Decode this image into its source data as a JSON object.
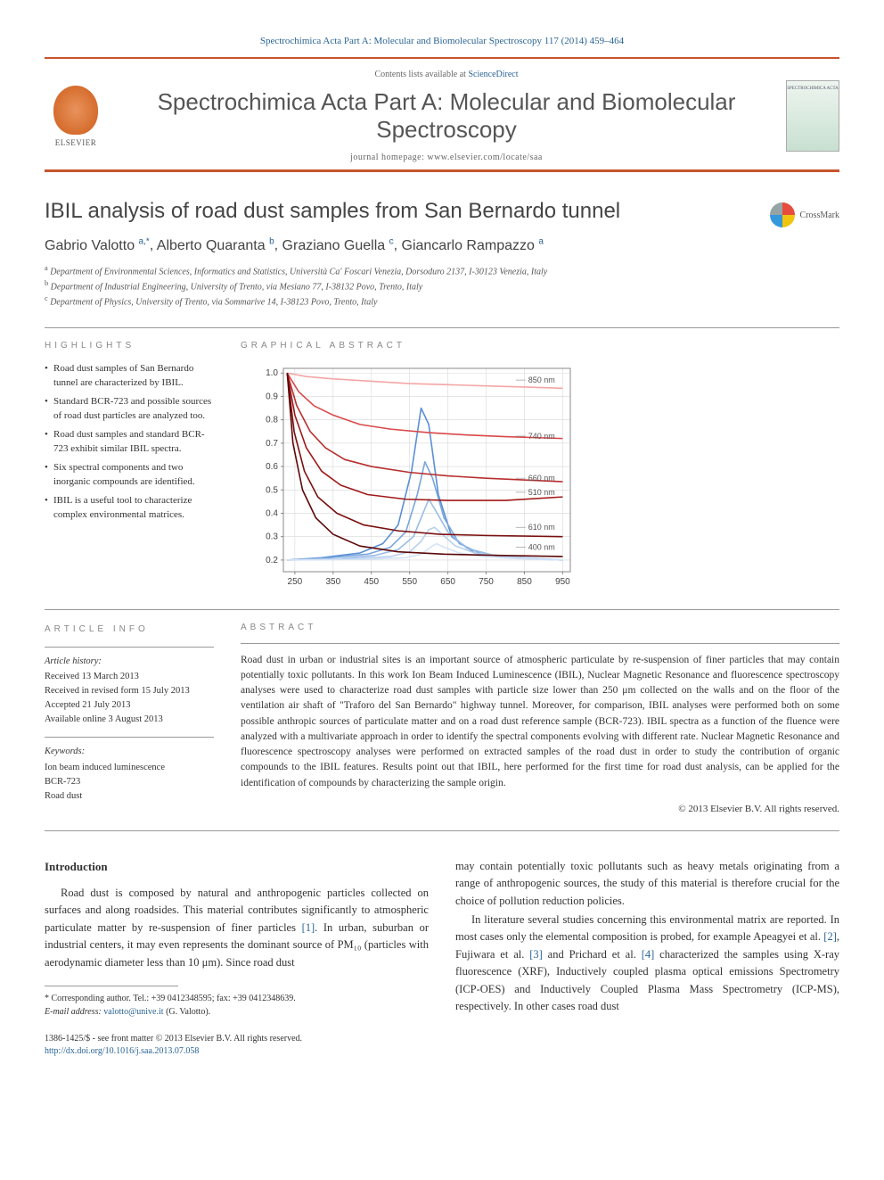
{
  "header": {
    "citation": "Spectrochimica Acta Part A: Molecular and Biomolecular Spectroscopy 117 (2014) 459–464",
    "contents_prefix": "Contents lists available at ",
    "contents_link": "ScienceDirect",
    "journal_title": "Spectrochimica Acta Part A: Molecular and Biomolecular Spectroscopy",
    "homepage_prefix": "journal homepage: ",
    "homepage": "www.elsevier.com/locate/saa",
    "elsevier_label": "ELSEVIER",
    "cover_label": "SPECTROCHIMICA ACTA"
  },
  "article": {
    "title": "IBIL analysis of road dust samples from San Bernardo tunnel",
    "crossmark_label": "CrossMark",
    "authors_html": "Gabrio Valotto",
    "authors": [
      {
        "name": "Gabrio Valotto",
        "sup": "a,*"
      },
      {
        "name": "Alberto Quaranta",
        "sup": "b"
      },
      {
        "name": "Graziano Guella",
        "sup": "c"
      },
      {
        "name": "Giancarlo Rampazzo",
        "sup": "a"
      }
    ],
    "affiliations": [
      {
        "sup": "a",
        "text": "Department of Environmental Sciences, Informatics and Statistics, Università Ca' Foscari Venezia, Dorsoduro 2137, I-30123 Venezia, Italy"
      },
      {
        "sup": "b",
        "text": "Department of Industrial Engineering, University of Trento, via Mesiano 77, I-38132 Povo, Trento, Italy"
      },
      {
        "sup": "c",
        "text": "Department of Physics, University of Trento, via Sommarive 14, I-38123 Povo, Trento, Italy"
      }
    ]
  },
  "highlights": {
    "label": "HIGHLIGHTS",
    "items": [
      "Road dust samples of San Bernardo tunnel are characterized by IBIL.",
      "Standard BCR-723 and possible sources of road dust particles are analyzed too.",
      "Road dust samples and standard BCR-723 exhibit similar IBIL spectra.",
      "Six spectral components and two inorganic compounds are identified.",
      "IBIL is a useful tool to characterize complex environmental matrices."
    ]
  },
  "graphical_abstract": {
    "label": "GRAPHICAL ABSTRACT",
    "chart": {
      "type": "line",
      "xlim": [
        220,
        970
      ],
      "ylim": [
        0.15,
        1.02
      ],
      "xticks": [
        250,
        350,
        450,
        550,
        650,
        750,
        850,
        950
      ],
      "yticks": [
        0.2,
        0.3,
        0.4,
        0.5,
        0.6,
        0.7,
        0.8,
        0.9,
        1.0
      ],
      "tick_fontsize": 10,
      "grid_color": "#d8d8d8",
      "border_color": "#888888",
      "background_color": "#ffffff",
      "line_width": 1.6,
      "decay_series": [
        {
          "color": "#f4a6a6",
          "label": "850 nm",
          "label_x": 860,
          "label_y": 0.97,
          "points": [
            [
              230,
              1.0
            ],
            [
              280,
              0.985
            ],
            [
              350,
              0.975
            ],
            [
              450,
              0.965
            ],
            [
              550,
              0.955
            ],
            [
              650,
              0.95
            ],
            [
              750,
              0.945
            ],
            [
              850,
              0.94
            ],
            [
              950,
              0.935
            ]
          ]
        },
        {
          "color": "#d94848",
          "label": "740 nm",
          "label_x": 860,
          "label_y": 0.73,
          "points": [
            [
              230,
              1.0
            ],
            [
              260,
              0.92
            ],
            [
              300,
              0.86
            ],
            [
              350,
              0.82
            ],
            [
              420,
              0.78
            ],
            [
              500,
              0.76
            ],
            [
              600,
              0.745
            ],
            [
              700,
              0.735
            ],
            [
              800,
              0.728
            ],
            [
              950,
              0.72
            ]
          ]
        },
        {
          "color": "#b82e2e",
          "label": "660 nm",
          "label_x": 860,
          "label_y": 0.55,
          "points": [
            [
              230,
              1.0
            ],
            [
              255,
              0.86
            ],
            [
              290,
              0.75
            ],
            [
              330,
              0.68
            ],
            [
              380,
              0.63
            ],
            [
              450,
              0.6
            ],
            [
              550,
              0.575
            ],
            [
              650,
              0.56
            ],
            [
              750,
              0.55
            ],
            [
              950,
              0.535
            ]
          ]
        },
        {
          "color": "#a01818",
          "label": "510 nm",
          "label_x": 860,
          "label_y": 0.49,
          "points": [
            [
              230,
              1.0
            ],
            [
              250,
              0.82
            ],
            [
              280,
              0.68
            ],
            [
              320,
              0.58
            ],
            [
              370,
              0.52
            ],
            [
              440,
              0.48
            ],
            [
              540,
              0.46
            ],
            [
              650,
              0.455
            ],
            [
              800,
              0.455
            ],
            [
              950,
              0.47
            ]
          ]
        },
        {
          "color": "#7a0f0f",
          "label": "610 nm",
          "label_x": 860,
          "label_y": 0.34,
          "points": [
            [
              230,
              1.0
            ],
            [
              248,
              0.75
            ],
            [
              275,
              0.58
            ],
            [
              310,
              0.47
            ],
            [
              360,
              0.4
            ],
            [
              430,
              0.35
            ],
            [
              520,
              0.325
            ],
            [
              630,
              0.31
            ],
            [
              750,
              0.305
            ],
            [
              950,
              0.3
            ]
          ]
        },
        {
          "color": "#5c0808",
          "label": "400 nm",
          "label_x": 860,
          "label_y": 0.255,
          "points": [
            [
              230,
              1.0
            ],
            [
              245,
              0.7
            ],
            [
              270,
              0.5
            ],
            [
              305,
              0.38
            ],
            [
              350,
              0.31
            ],
            [
              420,
              0.26
            ],
            [
              520,
              0.235
            ],
            [
              640,
              0.225
            ],
            [
              780,
              0.22
            ],
            [
              950,
              0.215
            ]
          ]
        }
      ],
      "blue_peak_series": [
        {
          "color": "#5b8fd6",
          "points": [
            [
              230,
              0.2
            ],
            [
              320,
              0.21
            ],
            [
              420,
              0.23
            ],
            [
              480,
              0.27
            ],
            [
              520,
              0.35
            ],
            [
              555,
              0.58
            ],
            [
              580,
              0.85
            ],
            [
              600,
              0.78
            ],
            [
              625,
              0.48
            ],
            [
              660,
              0.3
            ],
            [
              720,
              0.23
            ],
            [
              820,
              0.21
            ],
            [
              950,
              0.2
            ]
          ]
        },
        {
          "color": "#7aa5de",
          "points": [
            [
              230,
              0.2
            ],
            [
              340,
              0.21
            ],
            [
              440,
              0.225
            ],
            [
              500,
              0.255
            ],
            [
              540,
              0.32
            ],
            [
              570,
              0.48
            ],
            [
              590,
              0.62
            ],
            [
              610,
              0.55
            ],
            [
              640,
              0.38
            ],
            [
              680,
              0.27
            ],
            [
              740,
              0.225
            ],
            [
              850,
              0.21
            ],
            [
              950,
              0.2
            ]
          ]
        },
        {
          "color": "#9abce6",
          "points": [
            [
              230,
              0.2
            ],
            [
              360,
              0.205
            ],
            [
              460,
              0.22
            ],
            [
              520,
              0.245
            ],
            [
              560,
              0.3
            ],
            [
              585,
              0.4
            ],
            [
              600,
              0.46
            ],
            [
              615,
              0.42
            ],
            [
              650,
              0.32
            ],
            [
              700,
              0.25
            ],
            [
              770,
              0.22
            ],
            [
              870,
              0.205
            ],
            [
              950,
              0.2
            ]
          ]
        },
        {
          "color": "#b8d0ee",
          "points": [
            [
              230,
              0.2
            ],
            [
              400,
              0.205
            ],
            [
              500,
              0.215
            ],
            [
              550,
              0.235
            ],
            [
              580,
              0.28
            ],
            [
              600,
              0.33
            ],
            [
              615,
              0.34
            ],
            [
              635,
              0.31
            ],
            [
              670,
              0.26
            ],
            [
              720,
              0.23
            ],
            [
              800,
              0.215
            ],
            [
              900,
              0.205
            ],
            [
              950,
              0.2
            ]
          ]
        },
        {
          "color": "#d4e3f5",
          "points": [
            [
              230,
              0.2
            ],
            [
              440,
              0.203
            ],
            [
              540,
              0.21
            ],
            [
              580,
              0.225
            ],
            [
              605,
              0.255
            ],
            [
              620,
              0.27
            ],
            [
              640,
              0.255
            ],
            [
              680,
              0.23
            ],
            [
              740,
              0.215
            ],
            [
              830,
              0.206
            ],
            [
              950,
              0.2
            ]
          ]
        }
      ]
    }
  },
  "article_info": {
    "label": "ARTICLE INFO",
    "history_heading": "Article history:",
    "history": [
      "Received 13 March 2013",
      "Received in revised form 15 July 2013",
      "Accepted 21 July 2013",
      "Available online 3 August 2013"
    ],
    "keywords_heading": "Keywords:",
    "keywords": [
      "Ion beam induced luminescence",
      "BCR-723",
      "Road dust"
    ]
  },
  "abstract": {
    "label": "ABSTRACT",
    "text": "Road dust in urban or industrial sites is an important source of atmospheric particulate by re-suspension of finer particles that may contain potentially toxic pollutants. In this work Ion Beam Induced Luminescence (IBIL), Nuclear Magnetic Resonance and fluorescence spectroscopy analyses were used to characterize road dust samples with particle size lower than 250 μm collected on the walls and on the floor of the ventilation air shaft of \"Traforo del San Bernardo\" highway tunnel. Moreover, for comparison, IBIL analyses were performed both on some possible anthropic sources of particulate matter and on a road dust reference sample (BCR-723). IBIL spectra as a function of the fluence were analyzed with a multivariate approach in order to identify the spectral components evolving with different rate. Nuclear Magnetic Resonance and fluorescence spectroscopy analyses were performed on extracted samples of the road dust in order to study the contribution of organic compounds to the IBIL features. Results point out that IBIL, here performed for the first time for road dust analysis, can be applied for the identification of compounds by characterizing the sample origin.",
    "copyright": "© 2013 Elsevier B.V. All rights reserved."
  },
  "body": {
    "intro_heading": "Introduction",
    "para1": "Road dust is composed by natural and anthropogenic particles collected on surfaces and along roadsides. This material contributes significantly to atmospheric particulate matter by re-suspension of finer particles [1]. In urban, suburban or industrial centers, it may even represents the dominant source of PM₁₀ (particles with aerodynamic diameter less than 10 μm). Since road dust",
    "para2": "may contain potentially toxic pollutants such as heavy metals originating from a range of anthropogenic sources, the study of this material is therefore crucial for the choice of pollution reduction policies.",
    "para3": "In literature several studies concerning this environmental matrix are reported. In most cases only the elemental composition is probed, for example Apeagyei et al. [2], Fujiwara et al. [3] and Prichard et al. [4] characterized the samples using X-ray fluorescence (XRF), Inductively coupled plasma optical emissions Spectrometry (ICP-OES) and Inductively Coupled Plasma Mass Spectrometry (ICP-MS), respectively. In other cases road dust"
  },
  "footnotes": {
    "corresponding": "* Corresponding author. Tel.: +39 0412348595; fax: +39 0412348639.",
    "email_label": "E-mail address:",
    "email": "valotto@unive.it",
    "email_suffix": "(G. Valotto)."
  },
  "footer": {
    "line1": "1386-1425/$ - see front matter © 2013 Elsevier B.V. All rights reserved.",
    "doi": "http://dx.doi.org/10.1016/j.saa.2013.07.058"
  }
}
